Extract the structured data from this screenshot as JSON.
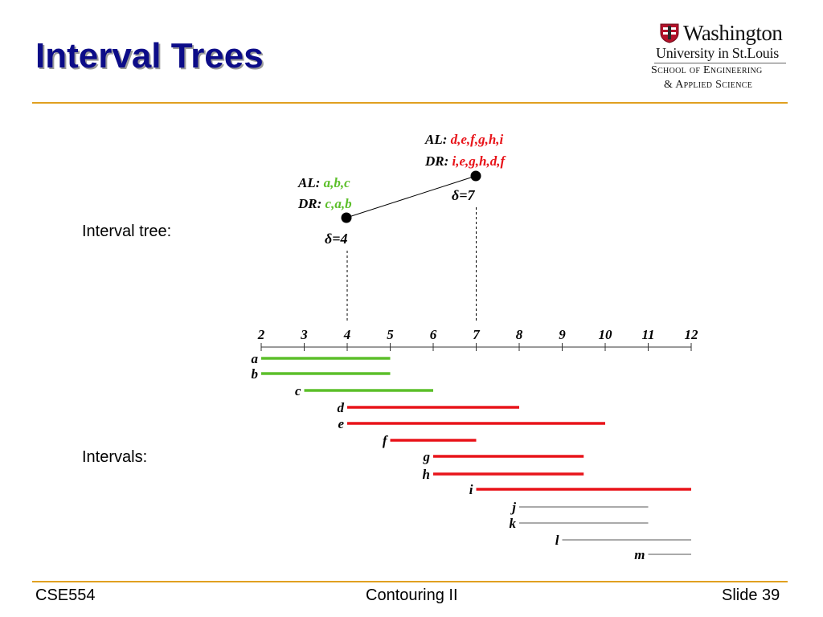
{
  "slide": {
    "title": "Interval Trees",
    "logo": {
      "line1": "Washington",
      "line2": "University in St.Louis",
      "line3": "School of Engineering",
      "line4": "& Applied Science"
    },
    "labels": {
      "tree": "Interval tree:",
      "intervals": "Intervals:"
    },
    "footer": {
      "left": "CSE554",
      "center": "Contouring II",
      "right": "Slide 39"
    }
  },
  "colors": {
    "title": "#0c0c88",
    "accent_rule": "#e0a020",
    "green": "#5cbf2a",
    "red": "#e8141a",
    "gray": "#555555"
  },
  "tree": {
    "nodes": [
      {
        "id": "root",
        "delta_label": "δ=7",
        "al_label": "AL:",
        "al_values": "d,e,f,g,h,i",
        "dr_label": "DR:",
        "dr_values": "i,e,g,h,d,f",
        "split": 7,
        "color": "red"
      },
      {
        "id": "left",
        "delta_label": "δ=4",
        "al_label": "AL:",
        "al_values": "a,b,c",
        "dr_label": "DR:",
        "dr_values": "c,a,b",
        "split": 4,
        "color": "green"
      }
    ]
  },
  "axis": {
    "ticks": [
      2,
      3,
      4,
      5,
      6,
      7,
      8,
      9,
      10,
      11,
      12
    ]
  },
  "intervals": [
    {
      "name": "a",
      "start": 2,
      "end": 5,
      "color": "green"
    },
    {
      "name": "b",
      "start": 2,
      "end": 5,
      "color": "green"
    },
    {
      "name": "c",
      "start": 3,
      "end": 6,
      "color": "green"
    },
    {
      "name": "d",
      "start": 4,
      "end": 8,
      "color": "red"
    },
    {
      "name": "e",
      "start": 4,
      "end": 10,
      "color": "red"
    },
    {
      "name": "f",
      "start": 5,
      "end": 7,
      "color": "red"
    },
    {
      "name": "g",
      "start": 6,
      "end": 9.5,
      "color": "red"
    },
    {
      "name": "h",
      "start": 6,
      "end": 9.5,
      "color": "red"
    },
    {
      "name": "i",
      "start": 7,
      "end": 12,
      "color": "red"
    },
    {
      "name": "j",
      "start": 8,
      "end": 11,
      "color": "gray"
    },
    {
      "name": "k",
      "start": 8,
      "end": 11,
      "color": "gray"
    },
    {
      "name": "l",
      "start": 9,
      "end": 12,
      "color": "gray"
    },
    {
      "name": "m",
      "start": 11,
      "end": 12,
      "color": "gray"
    }
  ]
}
